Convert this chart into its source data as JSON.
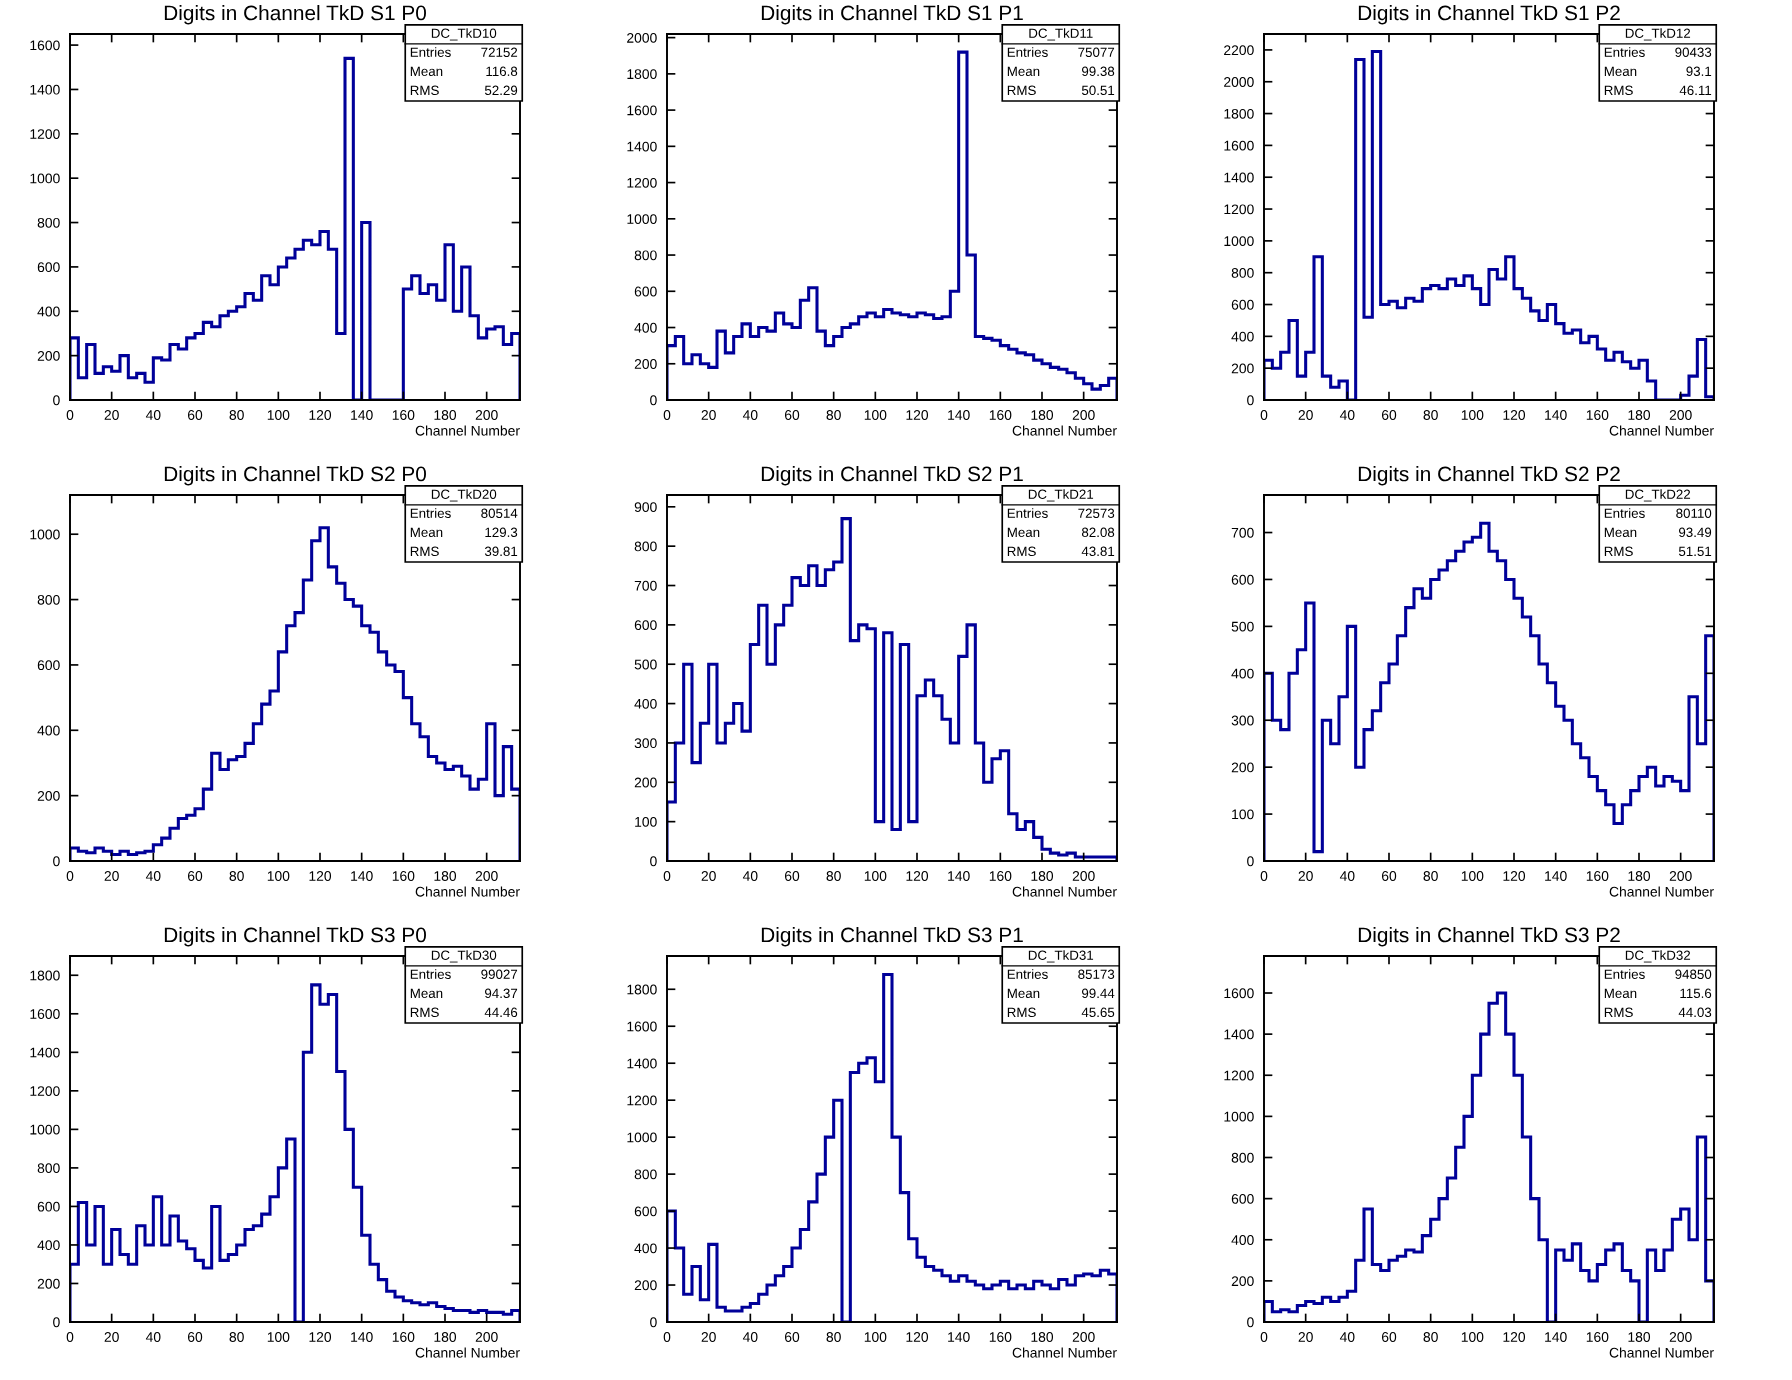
{
  "chart_data": [
    {
      "type": "histogram",
      "title": "Digits in Channel TkD S1 P0",
      "xlabel": "Channel Number",
      "color": "#000099",
      "grid": false,
      "xlim": [
        0,
        216
      ],
      "xticks": [
        0,
        20,
        40,
        60,
        80,
        100,
        120,
        140,
        160,
        180,
        200
      ],
      "ylim": [
        0,
        1650
      ],
      "yticks": [
        0,
        200,
        400,
        600,
        800,
        1000,
        1200,
        1400,
        1600
      ],
      "annotations": [
        "DC_TkD10",
        "Entries",
        "72152",
        "Mean",
        "116.8",
        "RMS",
        "52.29"
      ],
      "bins": [
        0,
        4,
        8,
        12,
        16,
        20,
        24,
        28,
        32,
        36,
        40,
        44,
        48,
        52,
        56,
        60,
        64,
        68,
        72,
        76,
        80,
        84,
        88,
        92,
        96,
        100,
        104,
        108,
        112,
        116,
        120,
        124,
        128,
        132,
        136,
        140,
        144,
        148,
        152,
        156,
        160,
        164,
        168,
        172,
        176,
        180,
        184,
        188,
        192,
        196,
        200,
        204,
        208,
        212,
        216
      ],
      "values": [
        280,
        100,
        250,
        120,
        150,
        130,
        200,
        100,
        120,
        80,
        190,
        180,
        250,
        230,
        280,
        300,
        350,
        330,
        380,
        400,
        420,
        480,
        450,
        560,
        520,
        600,
        640,
        680,
        720,
        700,
        760,
        680,
        300,
        1540,
        0,
        800,
        0,
        0,
        0,
        0,
        500,
        560,
        480,
        520,
        450,
        700,
        400,
        600,
        380,
        280,
        320,
        330,
        250,
        300
      ]
    },
    {
      "type": "histogram",
      "title": "Digits in Channel TkD S1 P1",
      "xlabel": "Channel Number",
      "color": "#000099",
      "grid": false,
      "xlim": [
        0,
        216
      ],
      "xticks": [
        0,
        20,
        40,
        60,
        80,
        100,
        120,
        140,
        160,
        180,
        200
      ],
      "ylim": [
        0,
        2020
      ],
      "yticks": [
        0,
        200,
        400,
        600,
        800,
        1000,
        1200,
        1400,
        1600,
        1800,
        2000
      ],
      "annotations": [
        "DC_TkD11",
        "Entries",
        "75077",
        "Mean",
        "99.38",
        "RMS",
        "50.51"
      ],
      "bins": [
        0,
        4,
        8,
        12,
        16,
        20,
        24,
        28,
        32,
        36,
        40,
        44,
        48,
        52,
        56,
        60,
        64,
        68,
        72,
        76,
        80,
        84,
        88,
        92,
        96,
        100,
        104,
        108,
        112,
        116,
        120,
        124,
        128,
        132,
        136,
        140,
        144,
        148,
        152,
        156,
        160,
        164,
        168,
        172,
        176,
        180,
        184,
        188,
        192,
        196,
        200,
        204,
        208,
        212,
        216
      ],
      "values": [
        300,
        350,
        200,
        250,
        200,
        180,
        380,
        260,
        350,
        420,
        350,
        400,
        380,
        480,
        420,
        400,
        550,
        620,
        380,
        300,
        350,
        400,
        420,
        460,
        480,
        460,
        500,
        480,
        470,
        460,
        480,
        470,
        450,
        460,
        600,
        1920,
        800,
        350,
        340,
        330,
        300,
        280,
        260,
        250,
        220,
        200,
        180,
        170,
        150,
        120,
        90,
        60,
        80,
        120
      ]
    },
    {
      "type": "histogram",
      "title": "Digits in Channel TkD S1 P2",
      "xlabel": "Channel Number",
      "color": "#000099",
      "grid": false,
      "xlim": [
        0,
        216
      ],
      "xticks": [
        0,
        20,
        40,
        60,
        80,
        100,
        120,
        140,
        160,
        180,
        200
      ],
      "ylim": [
        0,
        2300
      ],
      "yticks": [
        0,
        200,
        400,
        600,
        800,
        1000,
        1200,
        1400,
        1600,
        1800,
        2000,
        2200
      ],
      "annotations": [
        "DC_TkD12",
        "Entries",
        "90433",
        "Mean",
        "93.1",
        "RMS",
        "46.11"
      ],
      "bins": [
        0,
        4,
        8,
        12,
        16,
        20,
        24,
        28,
        32,
        36,
        40,
        44,
        48,
        52,
        56,
        60,
        64,
        68,
        72,
        76,
        80,
        84,
        88,
        92,
        96,
        100,
        104,
        108,
        112,
        116,
        120,
        124,
        128,
        132,
        136,
        140,
        144,
        148,
        152,
        156,
        160,
        164,
        168,
        172,
        176,
        180,
        184,
        188,
        192,
        196,
        200,
        204,
        208,
        212,
        216
      ],
      "values": [
        250,
        200,
        300,
        500,
        150,
        300,
        900,
        150,
        80,
        120,
        0,
        2140,
        520,
        2190,
        600,
        620,
        580,
        640,
        620,
        700,
        720,
        700,
        760,
        720,
        780,
        700,
        600,
        820,
        760,
        900,
        700,
        640,
        560,
        500,
        600,
        480,
        420,
        440,
        360,
        400,
        320,
        250,
        300,
        240,
        200,
        250,
        120,
        0,
        0,
        0,
        30,
        150,
        380,
        20
      ]
    },
    {
      "type": "histogram",
      "title": "Digits in Channel TkD S2 P0",
      "xlabel": "Channel Number",
      "color": "#000099",
      "grid": false,
      "xlim": [
        0,
        216
      ],
      "xticks": [
        0,
        20,
        40,
        60,
        80,
        100,
        120,
        140,
        160,
        180,
        200
      ],
      "ylim": [
        0,
        1120
      ],
      "yticks": [
        0,
        200,
        400,
        600,
        800,
        1000
      ],
      "annotations": [
        "DC_TkD20",
        "Entries",
        "80514",
        "Mean",
        "129.3",
        "RMS",
        "39.81"
      ],
      "bins": [
        0,
        4,
        8,
        12,
        16,
        20,
        24,
        28,
        32,
        36,
        40,
        44,
        48,
        52,
        56,
        60,
        64,
        68,
        72,
        76,
        80,
        84,
        88,
        92,
        96,
        100,
        104,
        108,
        112,
        116,
        120,
        124,
        128,
        132,
        136,
        140,
        144,
        148,
        152,
        156,
        160,
        164,
        168,
        172,
        176,
        180,
        184,
        188,
        192,
        196,
        200,
        204,
        208,
        212,
        216
      ],
      "values": [
        40,
        30,
        25,
        40,
        30,
        20,
        30,
        20,
        25,
        30,
        50,
        70,
        100,
        130,
        140,
        160,
        220,
        330,
        280,
        310,
        320,
        360,
        420,
        480,
        520,
        640,
        720,
        760,
        860,
        980,
        1020,
        900,
        850,
        800,
        780,
        720,
        700,
        640,
        600,
        580,
        500,
        420,
        380,
        320,
        300,
        280,
        290,
        260,
        220,
        250,
        420,
        200,
        350,
        220
      ]
    },
    {
      "type": "histogram",
      "title": "Digits in Channel TkD S2 P1",
      "xlabel": "Channel Number",
      "color": "#000099",
      "grid": false,
      "xlim": [
        0,
        216
      ],
      "xticks": [
        0,
        20,
        40,
        60,
        80,
        100,
        120,
        140,
        160,
        180,
        200
      ],
      "ylim": [
        0,
        930
      ],
      "yticks": [
        0,
        100,
        200,
        300,
        400,
        500,
        600,
        700,
        800,
        900
      ],
      "annotations": [
        "DC_TkD21",
        "Entries",
        "72573",
        "Mean",
        "82.08",
        "RMS",
        "43.81"
      ],
      "bins": [
        0,
        4,
        8,
        12,
        16,
        20,
        24,
        28,
        32,
        36,
        40,
        44,
        48,
        52,
        56,
        60,
        64,
        68,
        72,
        76,
        80,
        84,
        88,
        92,
        96,
        100,
        104,
        108,
        112,
        116,
        120,
        124,
        128,
        132,
        136,
        140,
        144,
        148,
        152,
        156,
        160,
        164,
        168,
        172,
        176,
        180,
        184,
        188,
        192,
        196,
        200,
        204,
        208,
        212,
        216
      ],
      "values": [
        150,
        300,
        500,
        250,
        350,
        500,
        300,
        350,
        400,
        330,
        550,
        650,
        500,
        600,
        650,
        720,
        700,
        750,
        700,
        740,
        760,
        870,
        560,
        600,
        590,
        100,
        580,
        80,
        550,
        100,
        420,
        460,
        420,
        360,
        300,
        520,
        600,
        300,
        200,
        260,
        280,
        120,
        80,
        100,
        60,
        30,
        20,
        15,
        20,
        10,
        10,
        10,
        10,
        10
      ]
    },
    {
      "type": "histogram",
      "title": "Digits in Channel TkD S2 P2",
      "xlabel": "Channel Number",
      "color": "#000099",
      "grid": false,
      "xlim": [
        0,
        216
      ],
      "xticks": [
        0,
        20,
        40,
        60,
        80,
        100,
        120,
        140,
        160,
        180,
        200
      ],
      "ylim": [
        0,
        780
      ],
      "yticks": [
        0,
        100,
        200,
        300,
        400,
        500,
        600,
        700
      ],
      "annotations": [
        "DC_TkD22",
        "Entries",
        "80110",
        "Mean",
        "93.49",
        "RMS",
        "51.51"
      ],
      "bins": [
        0,
        4,
        8,
        12,
        16,
        20,
        24,
        28,
        32,
        36,
        40,
        44,
        48,
        52,
        56,
        60,
        64,
        68,
        72,
        76,
        80,
        84,
        88,
        92,
        96,
        100,
        104,
        108,
        112,
        116,
        120,
        124,
        128,
        132,
        136,
        140,
        144,
        148,
        152,
        156,
        160,
        164,
        168,
        172,
        176,
        180,
        184,
        188,
        192,
        196,
        200,
        204,
        208,
        212,
        216
      ],
      "values": [
        400,
        300,
        280,
        400,
        450,
        550,
        20,
        300,
        250,
        350,
        500,
        200,
        280,
        320,
        380,
        420,
        480,
        540,
        580,
        560,
        600,
        620,
        640,
        660,
        680,
        690,
        720,
        660,
        640,
        600,
        560,
        520,
        480,
        420,
        380,
        330,
        300,
        250,
        220,
        180,
        150,
        120,
        80,
        120,
        150,
        180,
        200,
        160,
        180,
        170,
        150,
        350,
        250,
        480
      ]
    },
    {
      "type": "histogram",
      "title": "Digits in Channel TkD S3 P0",
      "xlabel": "Channel Number",
      "color": "#000099",
      "grid": false,
      "xlim": [
        0,
        216
      ],
      "xticks": [
        0,
        20,
        40,
        60,
        80,
        100,
        120,
        140,
        160,
        180,
        200
      ],
      "ylim": [
        0,
        1900
      ],
      "yticks": [
        0,
        200,
        400,
        600,
        800,
        1000,
        1200,
        1400,
        1600,
        1800
      ],
      "annotations": [
        "DC_TkD30",
        "Entries",
        "99027",
        "Mean",
        "94.37",
        "RMS",
        "44.46"
      ],
      "bins": [
        0,
        4,
        8,
        12,
        16,
        20,
        24,
        28,
        32,
        36,
        40,
        44,
        48,
        52,
        56,
        60,
        64,
        68,
        72,
        76,
        80,
        84,
        88,
        92,
        96,
        100,
        104,
        108,
        112,
        116,
        120,
        124,
        128,
        132,
        136,
        140,
        144,
        148,
        152,
        156,
        160,
        164,
        168,
        172,
        176,
        180,
        184,
        188,
        192,
        196,
        200,
        204,
        208,
        212,
        216
      ],
      "values": [
        300,
        620,
        400,
        600,
        300,
        480,
        350,
        300,
        500,
        400,
        650,
        400,
        550,
        420,
        380,
        320,
        280,
        600,
        320,
        350,
        400,
        480,
        500,
        560,
        650,
        800,
        950,
        0,
        1400,
        1750,
        1650,
        1700,
        1300,
        1000,
        700,
        450,
        300,
        220,
        160,
        130,
        110,
        100,
        90,
        100,
        80,
        70,
        60,
        60,
        50,
        60,
        50,
        50,
        40,
        60
      ]
    },
    {
      "type": "histogram",
      "title": "Digits in Channel TkD S3 P1",
      "xlabel": "Channel Number",
      "color": "#000099",
      "grid": false,
      "xlim": [
        0,
        216
      ],
      "xticks": [
        0,
        20,
        40,
        60,
        80,
        100,
        120,
        140,
        160,
        180,
        200
      ],
      "ylim": [
        0,
        1980
      ],
      "yticks": [
        0,
        200,
        400,
        600,
        800,
        1000,
        1200,
        1400,
        1600,
        1800
      ],
      "annotations": [
        "DC_TkD31",
        "Entries",
        "85173",
        "Mean",
        "99.44",
        "RMS",
        "45.65"
      ],
      "bins": [
        0,
        4,
        8,
        12,
        16,
        20,
        24,
        28,
        32,
        36,
        40,
        44,
        48,
        52,
        56,
        60,
        64,
        68,
        72,
        76,
        80,
        84,
        88,
        92,
        96,
        100,
        104,
        108,
        112,
        116,
        120,
        124,
        128,
        132,
        136,
        140,
        144,
        148,
        152,
        156,
        160,
        164,
        168,
        172,
        176,
        180,
        184,
        188,
        192,
        196,
        200,
        204,
        208,
        212,
        216
      ],
      "values": [
        600,
        400,
        150,
        300,
        120,
        420,
        80,
        60,
        60,
        80,
        100,
        150,
        200,
        250,
        300,
        400,
        500,
        650,
        800,
        1000,
        1200,
        0,
        1350,
        1400,
        1430,
        1300,
        1880,
        1000,
        700,
        450,
        350,
        300,
        280,
        250,
        220,
        250,
        220,
        200,
        180,
        200,
        220,
        180,
        200,
        180,
        220,
        200,
        180,
        230,
        200,
        250,
        260,
        250,
        280,
        260
      ]
    },
    {
      "type": "histogram",
      "title": "Digits in Channel TkD S3 P2",
      "xlabel": "Channel Number",
      "color": "#000099",
      "grid": false,
      "xlim": [
        0,
        216
      ],
      "xticks": [
        0,
        20,
        40,
        60,
        80,
        100,
        120,
        140,
        160,
        180,
        200
      ],
      "ylim": [
        0,
        1780
      ],
      "yticks": [
        0,
        200,
        400,
        600,
        800,
        1000,
        1200,
        1400,
        1600
      ],
      "annotations": [
        "DC_TkD32",
        "Entries",
        "94850",
        "Mean",
        "115.6",
        "RMS",
        "44.03"
      ],
      "bins": [
        0,
        4,
        8,
        12,
        16,
        20,
        24,
        28,
        32,
        36,
        40,
        44,
        48,
        52,
        56,
        60,
        64,
        68,
        72,
        76,
        80,
        84,
        88,
        92,
        96,
        100,
        104,
        108,
        112,
        116,
        120,
        124,
        128,
        132,
        136,
        140,
        144,
        148,
        152,
        156,
        160,
        164,
        168,
        172,
        176,
        180,
        184,
        188,
        192,
        196,
        200,
        204,
        208,
        212,
        216
      ],
      "values": [
        100,
        50,
        60,
        50,
        80,
        100,
        90,
        120,
        100,
        120,
        150,
        300,
        550,
        280,
        250,
        300,
        320,
        350,
        340,
        420,
        500,
        600,
        700,
        850,
        1000,
        1200,
        1400,
        1550,
        1600,
        1400,
        1200,
        900,
        600,
        400,
        0,
        350,
        300,
        380,
        250,
        200,
        280,
        350,
        380,
        250,
        200,
        0,
        350,
        250,
        350,
        500,
        550,
        400,
        900,
        200
      ]
    }
  ]
}
